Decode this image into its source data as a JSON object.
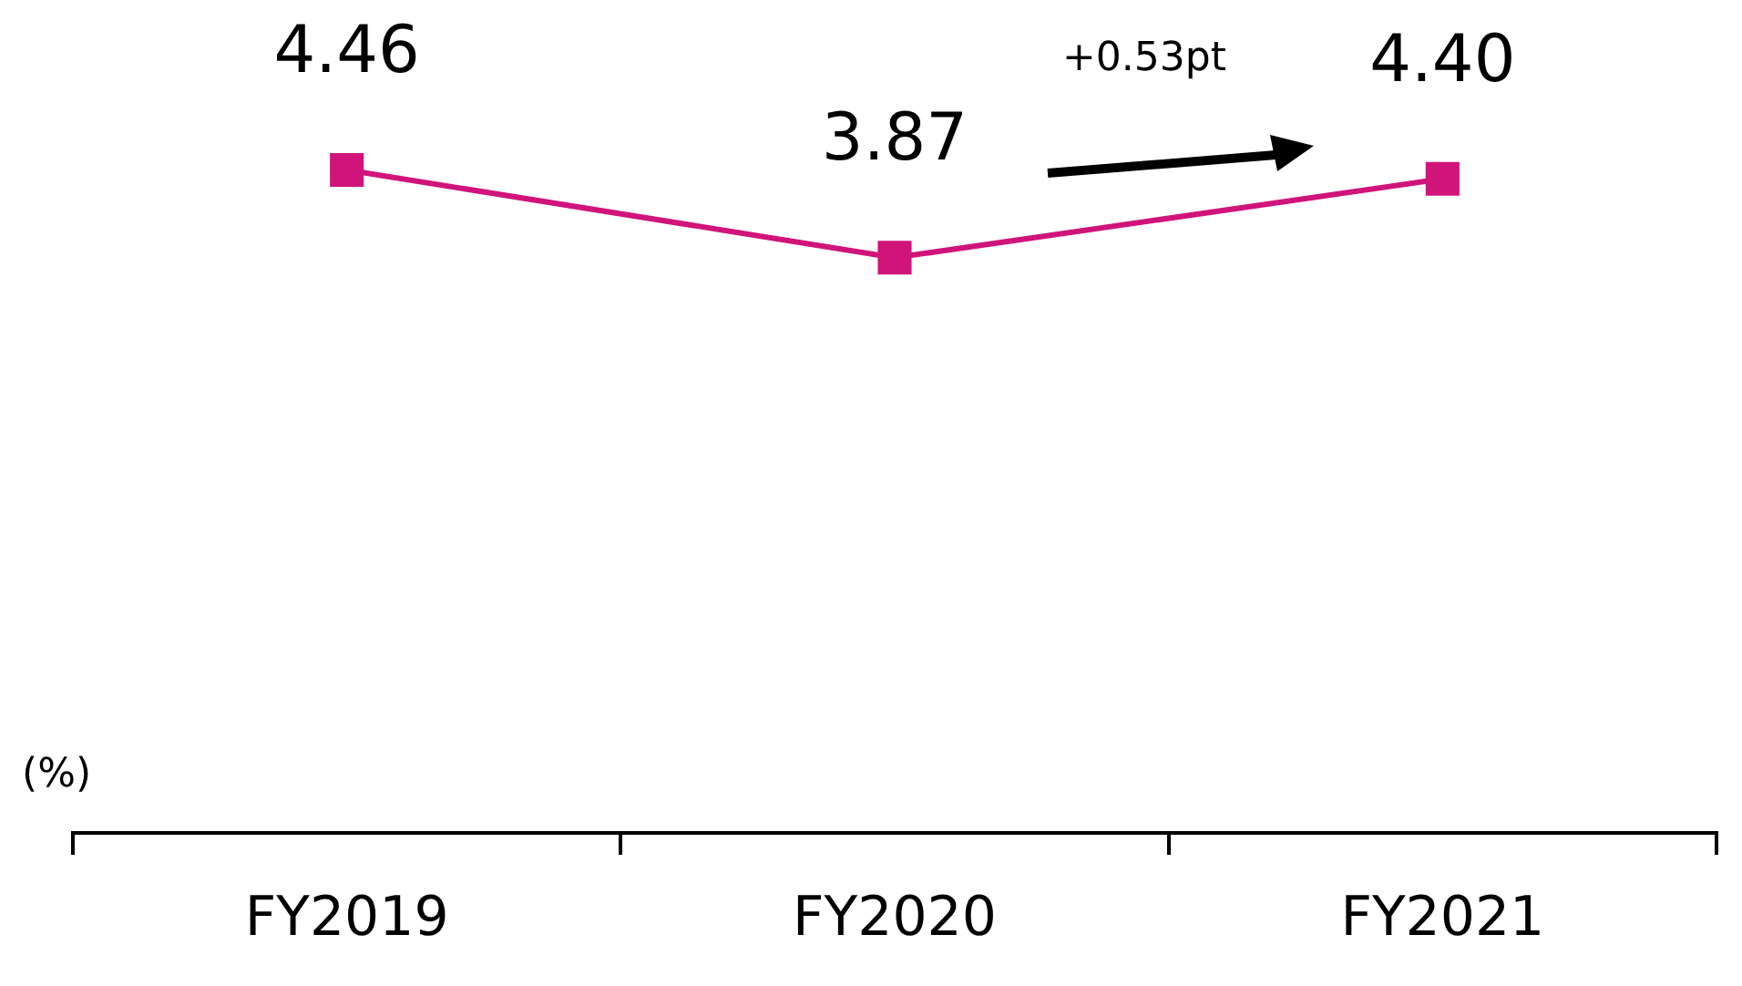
{
  "chart_data": {
    "type": "line",
    "categories": [
      "FY2019",
      "FY2020",
      "FY2021"
    ],
    "series": [
      {
        "color": "#d0147a",
        "values": [
          4.46,
          3.87,
          4.4
        ],
        "value_labels": [
          "4.46",
          "3.87",
          "4.40"
        ]
      }
    ],
    "tick_labels": "x",
    "ylabel": "(%)",
    "marker": "square",
    "line_style": "solid",
    "grid": false,
    "legend": false,
    "annotations": [
      "+0.53pt"
    ]
  }
}
